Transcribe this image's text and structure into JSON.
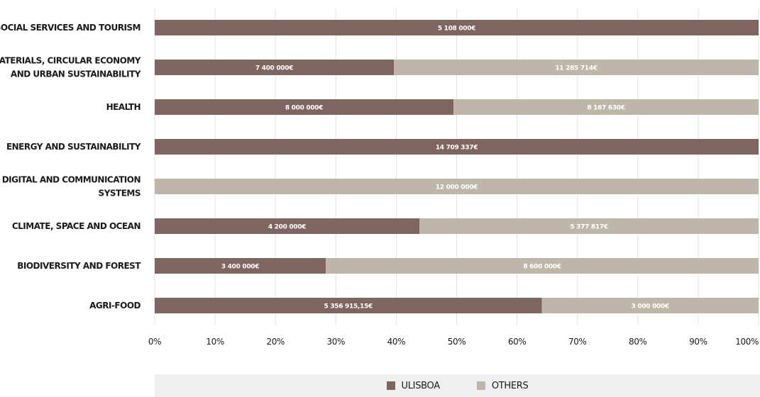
{
  "chart_data": {
    "type": "bar",
    "orientation": "horizontal",
    "stacking": "percent",
    "categories": [
      [
        "SOCIAL SERVICES AND TOURISM"
      ],
      [
        "MATERIALS, CIRCULAR ECONOMY",
        "AND URBAN SUSTAINABILITY"
      ],
      [
        "HEALTH"
      ],
      [
        "ENERGY AND SUSTAINABILITY"
      ],
      [
        "DIGITAL AND COMMUNICATION",
        "SYSTEMS"
      ],
      [
        "CLIMATE, SPACE AND OCEAN"
      ],
      [
        "BIODIVERSITY AND FOREST"
      ],
      [
        "AGRI-FOOD"
      ]
    ],
    "series": [
      {
        "name": "ULISBOA",
        "color": "#7f6560",
        "values": [
          5108000,
          7400000,
          8000000,
          14709337,
          0,
          4200000,
          3400000,
          5356915.15
        ],
        "labels": [
          "5 108 000€",
          "7 400 000€",
          "8 000 000€",
          "14 709 337€",
          "",
          "4 200 000€",
          "3 400 000€",
          "5 356 915,15€"
        ]
      },
      {
        "name": "OTHERS",
        "color": "#beb6a8",
        "values": [
          0,
          11285714,
          8167630,
          0,
          12000000,
          5377817,
          8600000,
          3000000
        ],
        "labels": [
          "",
          "11 285 714€",
          "8 167 630€",
          "",
          "12 000 000€",
          "5 377 817€",
          "8 600 000€",
          "3 000 000€"
        ]
      }
    ],
    "x_ticks": [
      "0%",
      "10%",
      "20%",
      "30%",
      "40%",
      "50%",
      "60%",
      "70%",
      "80%",
      "90%",
      "100%"
    ],
    "xlim": [
      0,
      100
    ],
    "grid": true,
    "legend_position": "bottom"
  },
  "legend": {
    "items": [
      {
        "label": "ULISBOA",
        "color": "#7f6560"
      },
      {
        "label": "OTHERS",
        "color": "#beb6a8"
      }
    ]
  }
}
